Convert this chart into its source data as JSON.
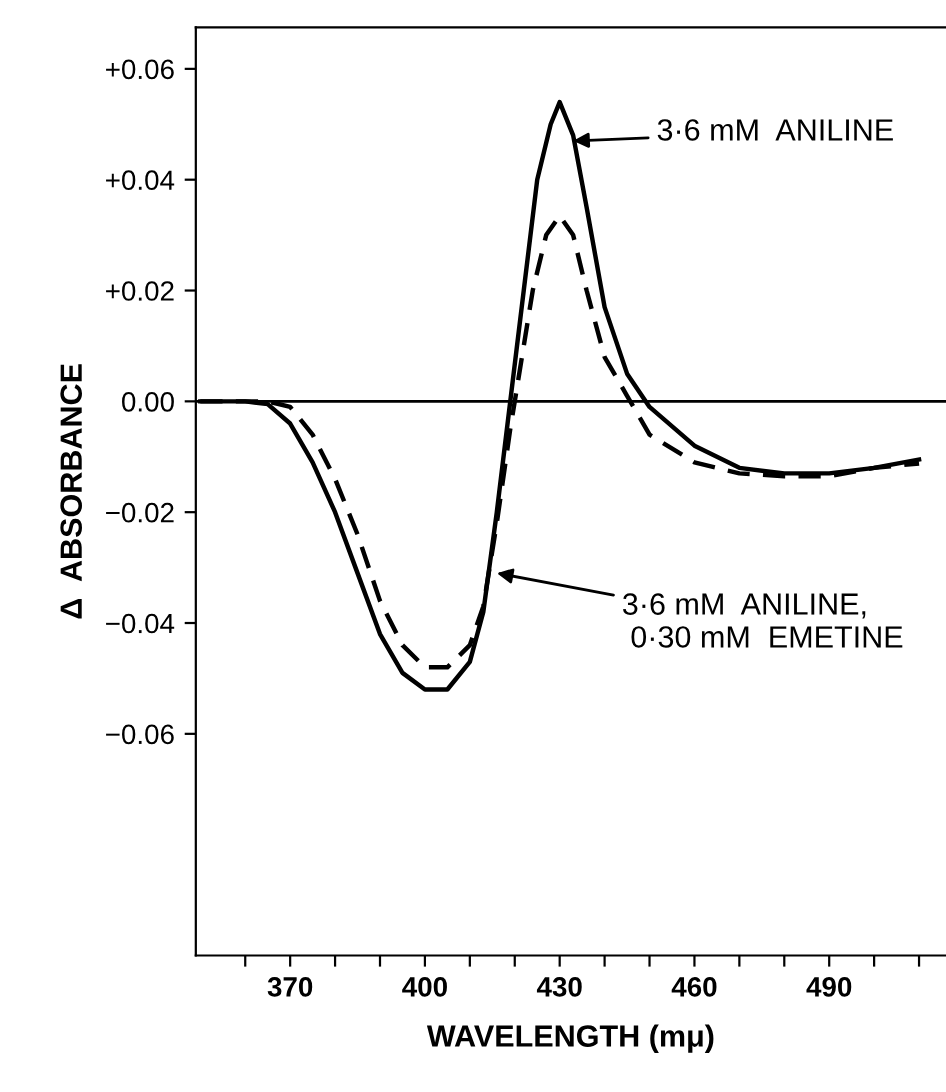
{
  "chart_data": {
    "type": "line",
    "xlabel": "WAVELENGTH (mμ)",
    "ylabel": "Δ  ABSORBANCE",
    "xlim": [
      349,
      516
    ],
    "ylim": [
      -0.1,
      0.0675
    ],
    "xticks": [
      {
        "value": 360,
        "label": null
      },
      {
        "value": 370,
        "label": "370"
      },
      {
        "value": 380,
        "label": null
      },
      {
        "value": 390,
        "label": null
      },
      {
        "value": 400,
        "label": "400"
      },
      {
        "value": 410,
        "label": null
      },
      {
        "value": 420,
        "label": null
      },
      {
        "value": 430,
        "label": "430"
      },
      {
        "value": 440,
        "label": null
      },
      {
        "value": 450,
        "label": null
      },
      {
        "value": 460,
        "label": "460"
      },
      {
        "value": 470,
        "label": null
      },
      {
        "value": 480,
        "label": null
      },
      {
        "value": 490,
        "label": "490"
      },
      {
        "value": 500,
        "label": null
      },
      {
        "value": 510,
        "label": null
      }
    ],
    "yticks": [
      {
        "value": 0.06,
        "label": "+0.06"
      },
      {
        "value": 0.04,
        "label": "+0.04"
      },
      {
        "value": 0.02,
        "label": "+0.02"
      },
      {
        "value": 0,
        "label": "0.00"
      },
      {
        "value": -0.02,
        "label": "−0.02"
      },
      {
        "value": -0.04,
        "label": "−0.04"
      },
      {
        "value": -0.06,
        "label": "−0.06"
      }
    ],
    "grid": false,
    "marker": "none",
    "ref_lines": [
      {
        "axis": "y",
        "value": 0,
        "color": "#000000",
        "line_style": "solid"
      }
    ],
    "series": [
      {
        "color": "#000000",
        "line_style": "solid",
        "x": [
          350,
          360,
          365,
          370,
          375,
          380,
          385,
          390,
          395,
          400,
          405,
          410,
          413,
          416,
          419,
          422,
          425,
          428,
          430,
          433,
          436,
          440,
          445,
          450,
          460,
          470,
          480,
          490,
          500,
          510
        ],
        "values": [
          0,
          0,
          -0.0005,
          -0.004,
          -0.011,
          -0.02,
          -0.031,
          -0.042,
          -0.049,
          -0.052,
          -0.052,
          -0.047,
          -0.038,
          -0.02,
          0,
          0.02,
          0.04,
          0.05,
          0.054,
          0.048,
          0.035,
          0.017,
          0.005,
          -0.001,
          -0.008,
          -0.012,
          -0.013,
          -0.013,
          -0.012,
          -0.0105
        ]
      },
      {
        "color": "#000000",
        "line_style": "dashed",
        "x": [
          350,
          365,
          370,
          375,
          380,
          385,
          390,
          395,
          400,
          405,
          410,
          413,
          416,
          419,
          421,
          424,
          427,
          430,
          433,
          436,
          440,
          445,
          450,
          460,
          470,
          480,
          490,
          500,
          510
        ],
        "values": [
          0,
          0,
          -0.001,
          -0.006,
          -0.014,
          -0.024,
          -0.036,
          -0.044,
          -0.048,
          -0.048,
          -0.044,
          -0.037,
          -0.022,
          -0.005,
          0.005,
          0.02,
          0.03,
          0.0335,
          0.03,
          0.02,
          0.008,
          0.001,
          -0.006,
          -0.011,
          -0.013,
          -0.0135,
          -0.0135,
          -0.012,
          -0.0112
        ]
      }
    ],
    "annotations": [
      {
        "text": "3·6 mM  ANILINE",
        "x": 433,
        "y": 0.047
      },
      {
        "text": "3·6 mM  ANILINE,\n 0·30 mM  EMETINE",
        "x": 416,
        "y": -0.031
      }
    ]
  }
}
